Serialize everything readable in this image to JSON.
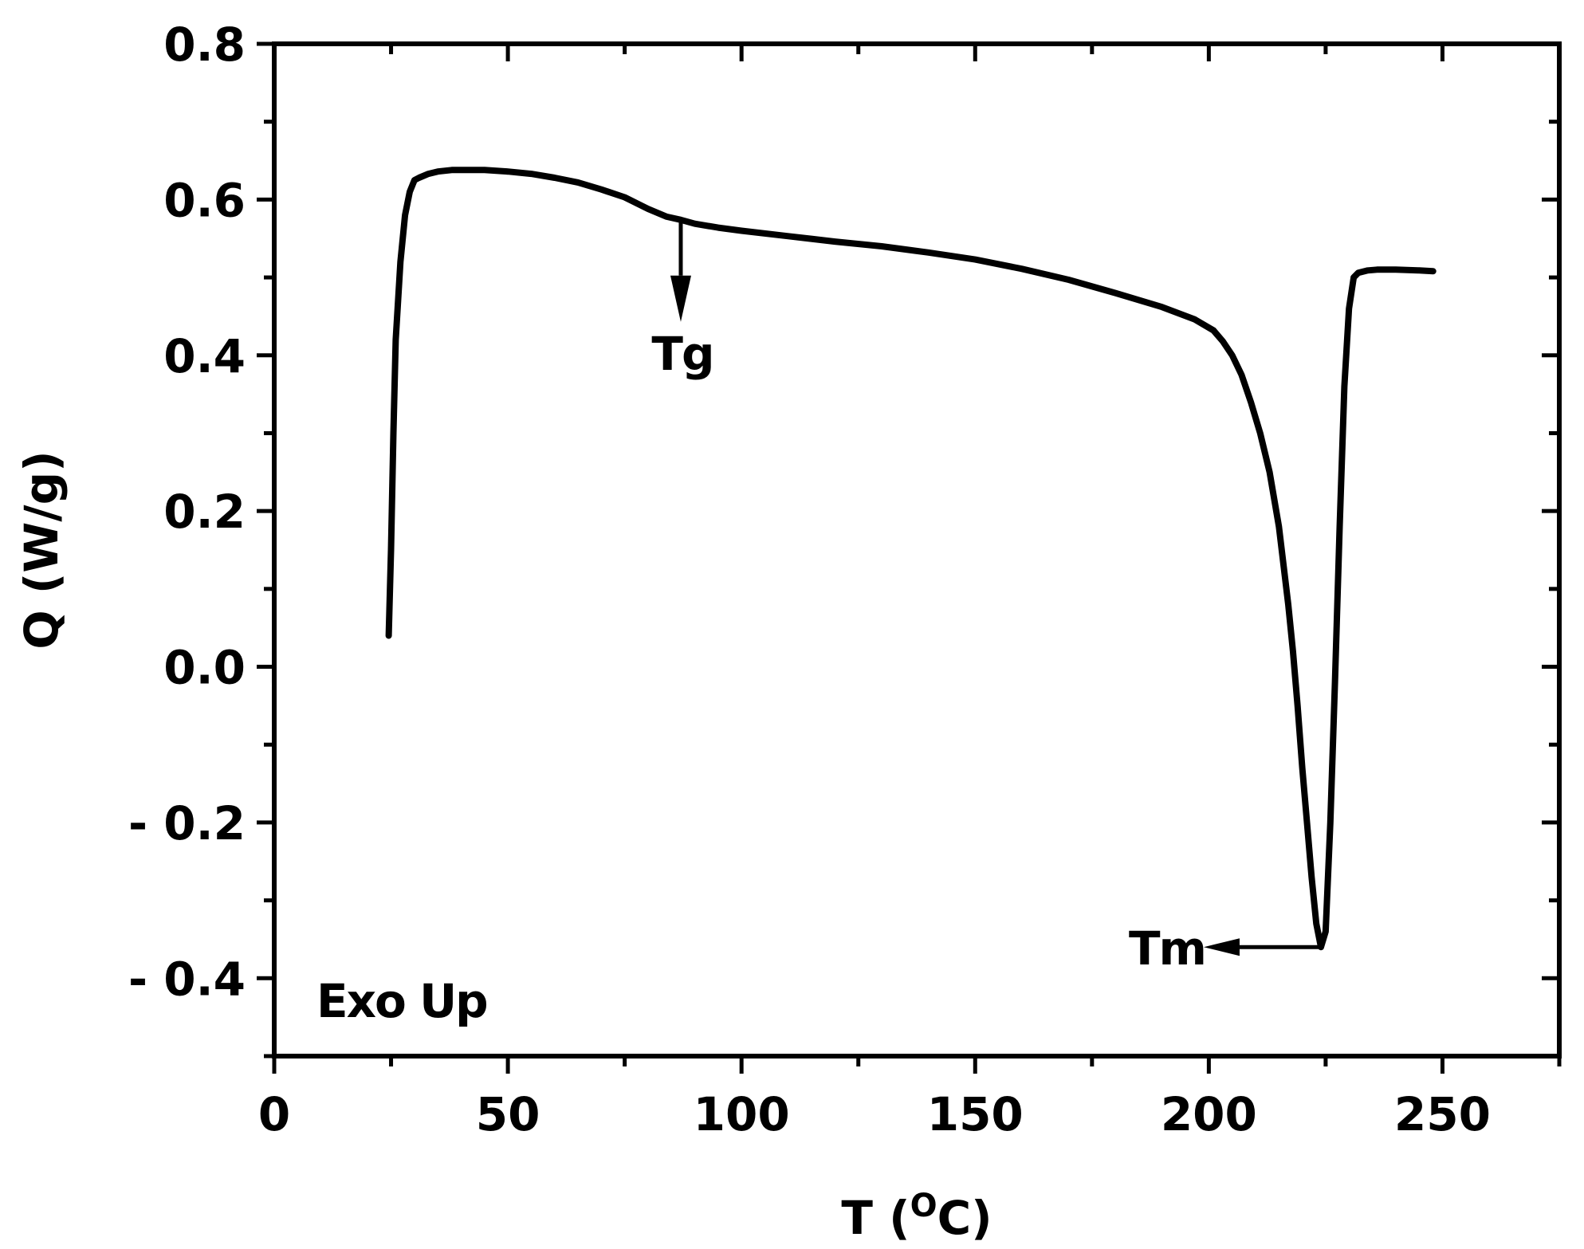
{
  "chart_data": {
    "type": "line",
    "xlabel": "T (",
    "xlabel_sup": "O",
    "xlabel_end": "C)",
    "ylabel": "Q (W/g)",
    "xlim": [
      0,
      275
    ],
    "ylim": [
      -0.5,
      0.8
    ],
    "x_ticks": [
      0,
      50,
      100,
      150,
      200,
      250
    ],
    "x_tick_labels": [
      "0",
      "50",
      "100",
      "150",
      "200",
      "250"
    ],
    "y_ticks": [
      0.8,
      0.6,
      0.4,
      0.2,
      0.0,
      -0.2,
      -0.4
    ],
    "y_tick_labels": [
      "0.8",
      "0.6",
      "0.4",
      "0.2",
      "0.0",
      "- 0.2",
      "- 0.4"
    ],
    "grid": false,
    "series": [
      {
        "x": [
          24.5,
          25,
          25.5,
          26,
          27,
          28,
          29,
          30,
          31,
          33,
          35,
          38,
          40,
          45,
          50,
          55,
          60,
          65,
          70,
          75,
          80,
          84,
          87,
          90,
          95,
          100,
          110,
          120,
          130,
          140,
          150,
          160,
          170,
          180,
          190,
          197,
          201,
          203,
          205,
          207,
          209,
          211,
          213,
          215,
          217,
          218,
          219,
          220,
          221,
          222,
          223,
          224,
          225,
          226,
          227,
          228,
          229,
          230,
          231,
          232,
          234,
          236,
          240,
          245,
          248
        ],
        "y": [
          0.04,
          0.15,
          0.3,
          0.42,
          0.52,
          0.58,
          0.61,
          0.625,
          0.628,
          0.633,
          0.636,
          0.638,
          0.638,
          0.638,
          0.636,
          0.633,
          0.628,
          0.622,
          0.613,
          0.603,
          0.588,
          0.578,
          0.574,
          0.569,
          0.564,
          0.56,
          0.553,
          0.546,
          0.54,
          0.532,
          0.523,
          0.511,
          0.497,
          0.48,
          0.462,
          0.446,
          0.432,
          0.418,
          0.4,
          0.375,
          0.34,
          0.3,
          0.25,
          0.18,
          0.08,
          0.02,
          -0.05,
          -0.13,
          -0.2,
          -0.27,
          -0.33,
          -0.36,
          -0.34,
          -0.2,
          -0.02,
          0.18,
          0.36,
          0.46,
          0.5,
          0.506,
          0.509,
          0.51,
          0.51,
          0.509,
          0.508
        ]
      }
    ],
    "annotations": {
      "tg_label": "Tg",
      "tg_x": 87,
      "tg_y": 0.574,
      "tm_label": "Tm",
      "tm_x": 224.5,
      "tm_y": -0.36,
      "exo_label": "Exo Up"
    }
  }
}
